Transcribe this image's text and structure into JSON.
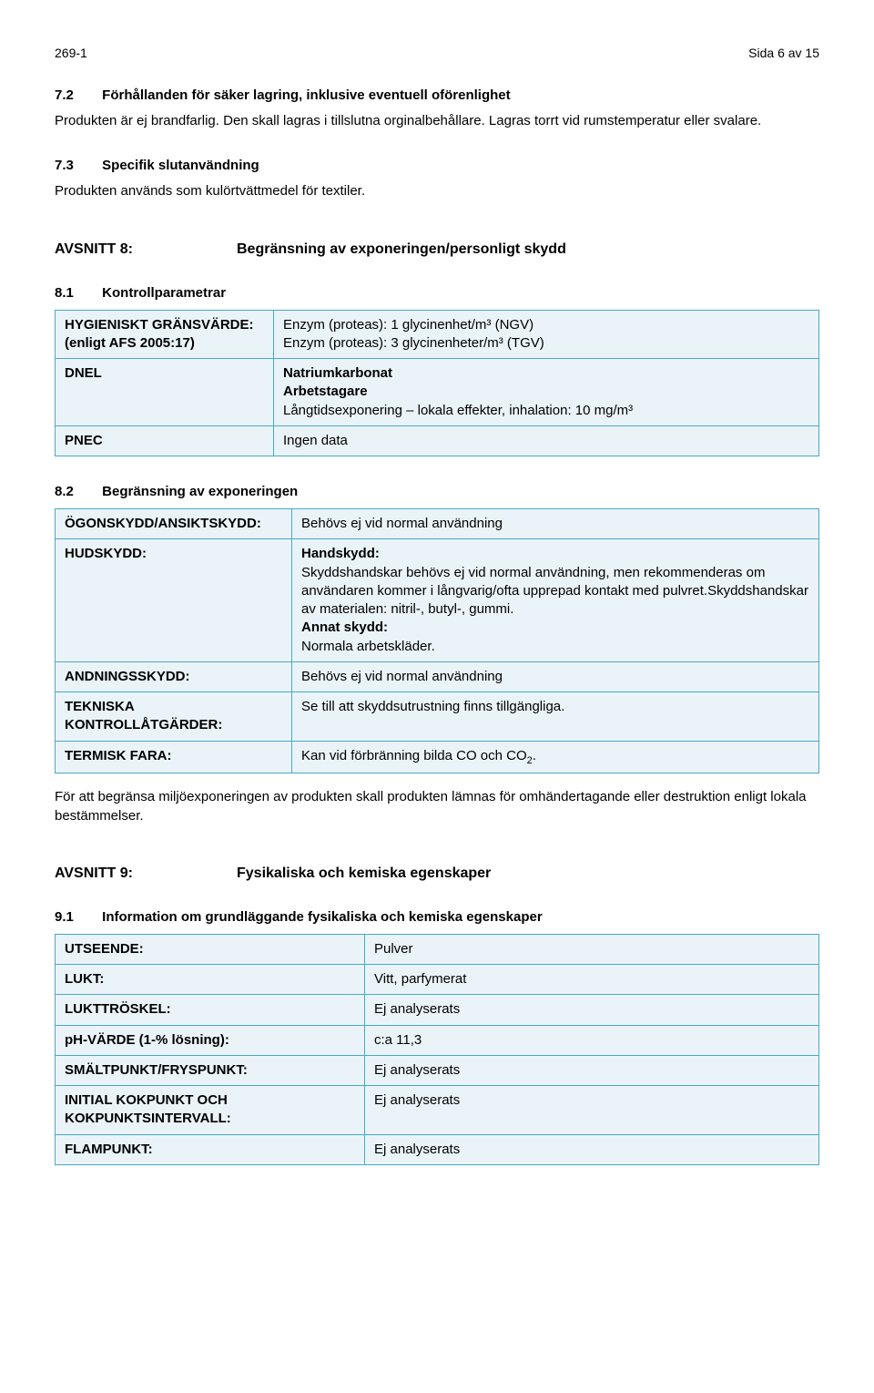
{
  "header": {
    "left": "269-1",
    "right": "Sida 6 av 15"
  },
  "s72": {
    "num": "7.2",
    "title": "Förhållanden för säker lagring, inklusive eventuell oförenlighet",
    "body": "Produkten är ej brandfarlig. Den skall lagras i tillslutna orginalbehållare. Lagras torrt vid rumstemperatur eller svalare."
  },
  "s73": {
    "num": "7.3",
    "title": "Specifik slutanvändning",
    "body": "Produkten används som kulörtvättmedel för textiler."
  },
  "avsnitt8": {
    "label": "AVSNITT 8:",
    "title": "Begränsning av exponeringen/personligt skydd"
  },
  "s81": {
    "num": "8.1",
    "title": "Kontrollparametrar",
    "rows": [
      {
        "key": "HYGIENISKT GRÄNSVÄRDE:\n(enligt AFS 2005:17)",
        "val_html": "Enzym (proteas): 1 glycinenhet/m³ (NGV)\nEnzym (proteas): 3 glycinenheter/m³ (TGV)"
      },
      {
        "key": "DNEL",
        "val_html": "<span class='bold'>Natriumkarbonat</span>\n<span class='bold'>Arbetstagare</span>\nLångtidsexponering – lokala effekter, inhalation: 10 mg/m³"
      },
      {
        "key": "PNEC",
        "val_html": "Ingen data"
      }
    ]
  },
  "s82": {
    "num": "8.2",
    "title": "Begränsning av exponeringen",
    "rows": [
      {
        "key": "ÖGONSKYDD/ANSIKTSKYDD:",
        "val_html": "Behövs ej vid normal användning"
      },
      {
        "key": "HUDSKYDD:",
        "val_html": "<span class='bold'>Handskydd:</span>\nSkyddshandskar behövs ej vid normal användning, men rekommenderas om användaren kommer i långvarig/ofta upprepad kontakt med pulvret.Skyddshandskar av materialen: nitril-, butyl-, gummi.\n<span class='bold'>Annat skydd:</span>\nNormala arbetskläder."
      },
      {
        "key": "ANDNINGSSKYDD:",
        "val_html": "Behövs ej vid normal användning"
      },
      {
        "key": "TEKNISKA KONTROLLÅTGÄRDER:",
        "val_html": "Se till att skyddsutrustning finns tillgängliga."
      },
      {
        "key": "TERMISK FARA:",
        "val_html": "Kan vid förbränning bilda CO och CO<span class='subsc'>2</span>."
      }
    ],
    "tail": "För att begränsa miljöexponeringen av produkten skall produkten lämnas för omhändertagande eller destruktion enligt lokala bestämmelser."
  },
  "avsnitt9": {
    "label": "AVSNITT 9:",
    "title": "Fysikaliska och kemiska egenskaper"
  },
  "s91": {
    "num": "9.1",
    "title": "Information om grundläggande fysikaliska och kemiska egenskaper",
    "rows": [
      {
        "key": "UTSEENDE:",
        "val_html": "Pulver"
      },
      {
        "key": "LUKT:",
        "val_html": "Vitt, parfymerat"
      },
      {
        "key": "LUKTTRÖSKEL:",
        "val_html": "Ej analyserats"
      },
      {
        "key": "pH-VÄRDE (1-% lösning):",
        "val_html": "c:a 11,3"
      },
      {
        "key": "SMÄLTPUNKT/FRYSPUNKT:",
        "val_html": "Ej analyserats"
      },
      {
        "key": "INITIAL KOKPUNKT OCH KOKPUNKTSINTERVALL:",
        "val_html": "Ej analyserats"
      },
      {
        "key": "FLAMPUNKT:",
        "val_html": "Ej analyserats"
      }
    ]
  },
  "colors": {
    "table_border": "#4aa8c8",
    "table_fill": "#eaf4f8",
    "text": "#000000",
    "background": "#ffffff"
  }
}
